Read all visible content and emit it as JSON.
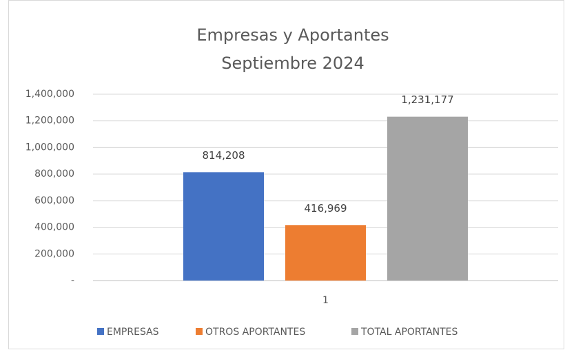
{
  "chart_data": {
    "type": "bar",
    "title": "Empresas y Aportantes",
    "subtitle": "Septiembre 2024",
    "categories": [
      "1"
    ],
    "series": [
      {
        "name": "EMPRESAS",
        "color": "#4472c4",
        "values": [
          814208
        ],
        "value_labels": [
          "814,208"
        ]
      },
      {
        "name": "OTROS APORTANTES",
        "color": "#ed7d31",
        "values": [
          416969
        ],
        "value_labels": [
          "416,969"
        ]
      },
      {
        "name": "TOTAL APORTANTES",
        "color": "#a5a5a5",
        "values": [
          1231177
        ],
        "value_labels": [
          "1,231,177"
        ]
      }
    ],
    "ylim": [
      0,
      1400000
    ],
    "yticks": [
      {
        "value": 0,
        "label": "-"
      },
      {
        "value": 200000,
        "label": "200,000"
      },
      {
        "value": 400000,
        "label": "400,000"
      },
      {
        "value": 600000,
        "label": "600,000"
      },
      {
        "value": 800000,
        "label": "800,000"
      },
      {
        "value": 1000000,
        "label": "1,000,000"
      },
      {
        "value": 1200000,
        "label": "1,200,000"
      },
      {
        "value": 1400000,
        "label": "1,400,000"
      }
    ],
    "grid": true,
    "legend": "bottom"
  }
}
